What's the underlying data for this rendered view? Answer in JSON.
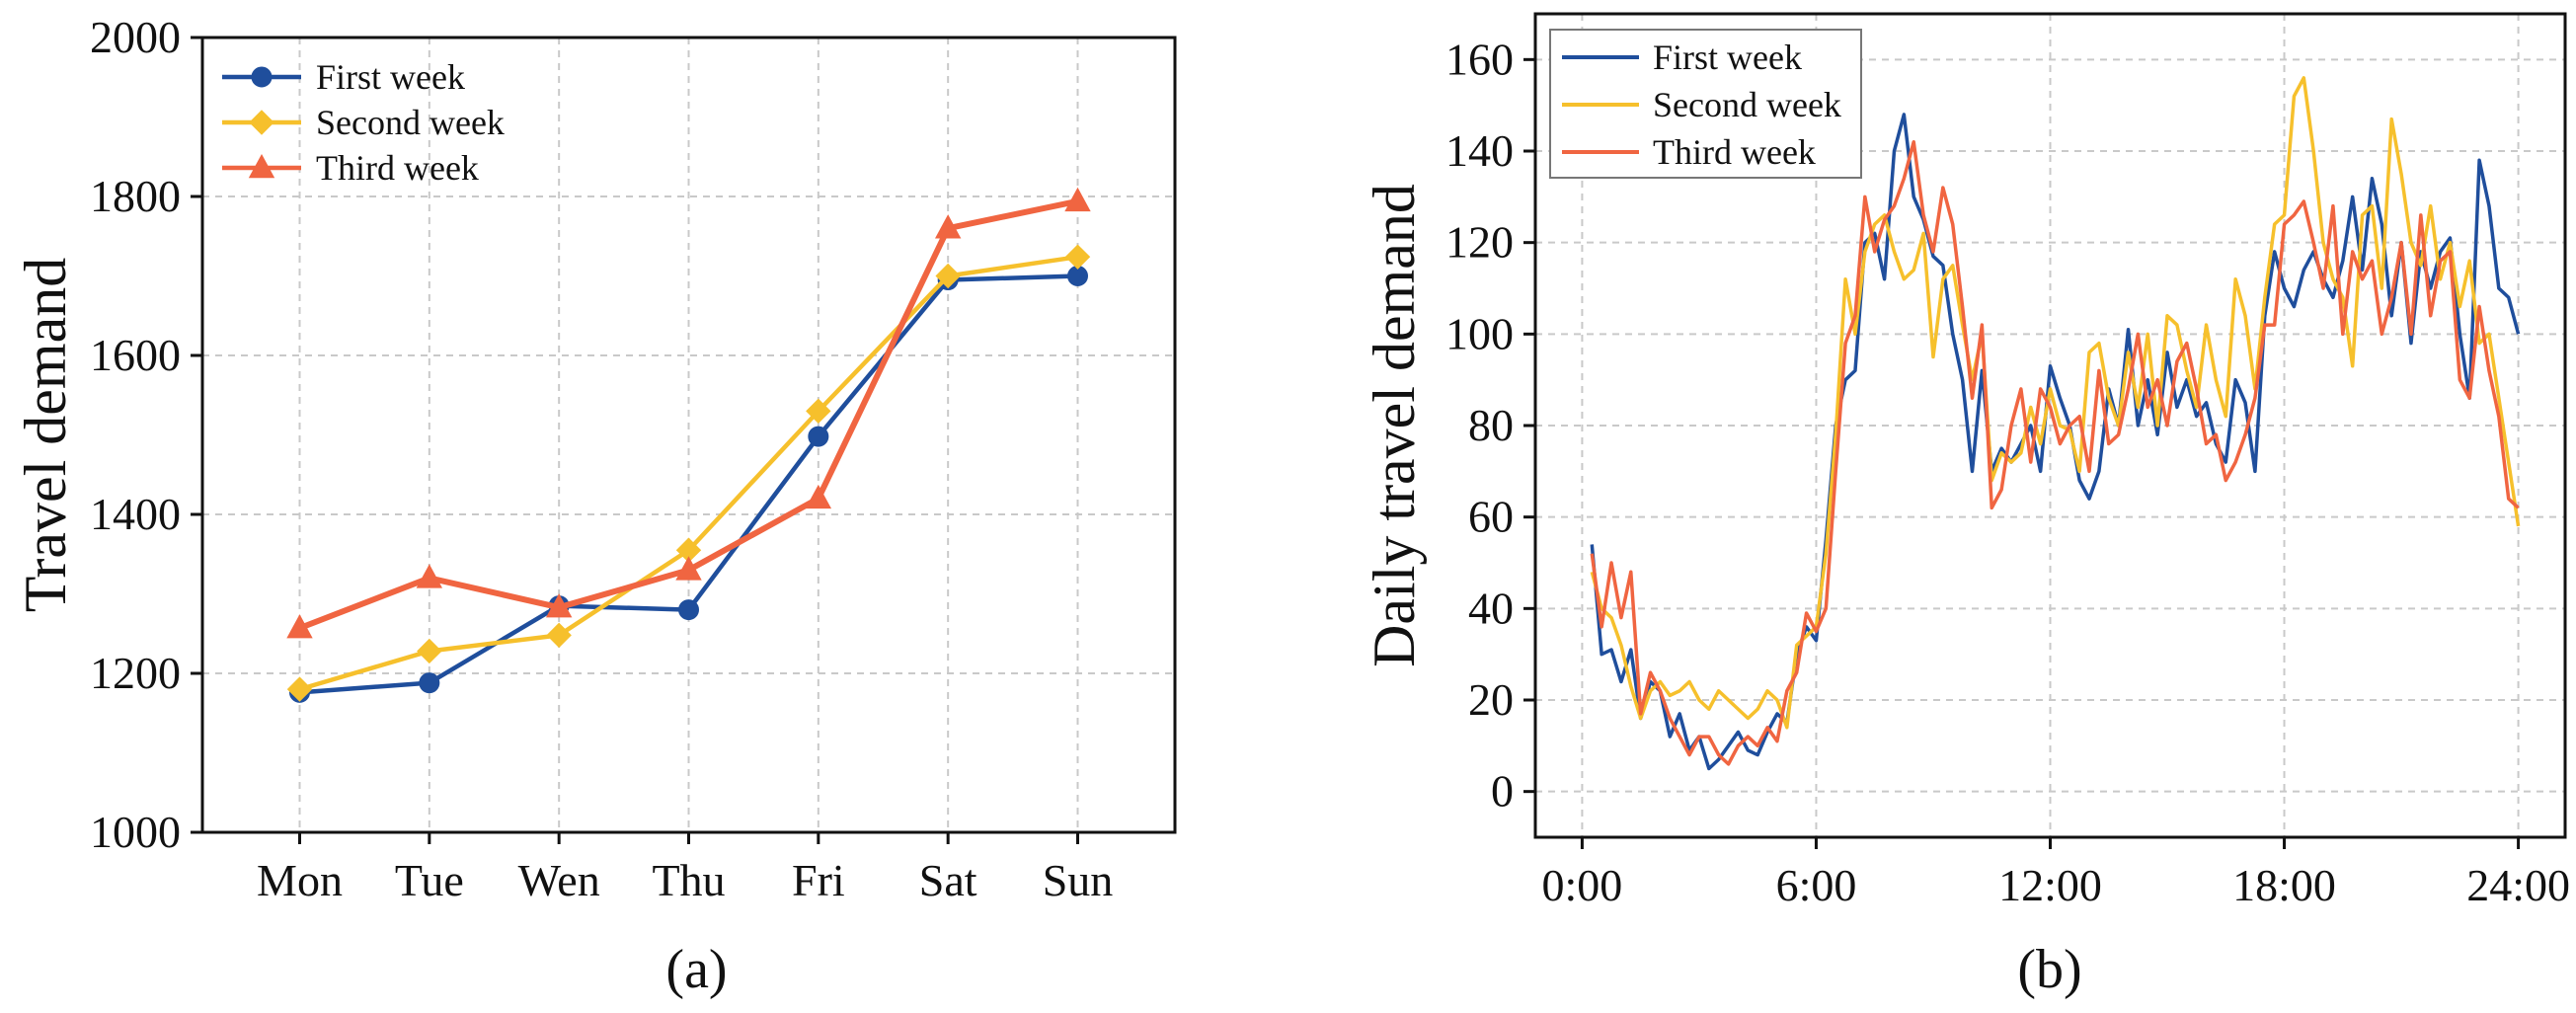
{
  "chart_data": [
    {
      "type": "line",
      "title": "",
      "caption": "(a)",
      "xlabel": "",
      "ylabel": "Travel demand",
      "categories": [
        "Mon",
        "Tue",
        "Wen",
        "Thu",
        "Fri",
        "Sat",
        "Sun"
      ],
      "ylim": [
        1000,
        2000
      ],
      "yticks": [
        1000,
        1200,
        1400,
        1600,
        1800,
        2000
      ],
      "grid": true,
      "legend_position": "top-left",
      "series": [
        {
          "name": "First week",
          "color": "#1f4e9c",
          "marker": "circle",
          "values": [
            1176,
            1188,
            1285,
            1280,
            1498,
            1695,
            1700
          ]
        },
        {
          "name": "Second week",
          "color": "#f6c02c",
          "marker": "diamond",
          "values": [
            1180,
            1228,
            1248,
            1355,
            1530,
            1700,
            1724
          ]
        },
        {
          "name": "Third week",
          "color": "#f06541",
          "marker": "triangle",
          "values": [
            1257,
            1320,
            1283,
            1330,
            1420,
            1760,
            1794
          ]
        }
      ]
    },
    {
      "type": "line",
      "title": "",
      "caption": "(b)",
      "xlabel": "",
      "ylabel": "Daily travel demand",
      "x": [
        0.25,
        0.5,
        0.75,
        1,
        1.25,
        1.5,
        1.75,
        2,
        2.25,
        2.5,
        2.75,
        3,
        3.25,
        3.5,
        3.75,
        4,
        4.25,
        4.5,
        4.75,
        5,
        5.25,
        5.5,
        5.75,
        6,
        6.25,
        6.5,
        6.75,
        7,
        7.25,
        7.5,
        7.75,
        8,
        8.25,
        8.5,
        8.75,
        9,
        9.25,
        9.5,
        9.75,
        10,
        10.25,
        10.5,
        10.75,
        11,
        11.25,
        11.5,
        11.75,
        12,
        12.25,
        12.5,
        12.75,
        13,
        13.25,
        13.5,
        13.75,
        14,
        14.25,
        14.5,
        14.75,
        15,
        15.25,
        15.5,
        15.75,
        16,
        16.25,
        16.5,
        16.75,
        17,
        17.25,
        17.5,
        17.75,
        18,
        18.25,
        18.5,
        18.75,
        19,
        19.25,
        19.5,
        19.75,
        20,
        20.25,
        20.5,
        20.75,
        21,
        21.25,
        21.5,
        21.75,
        22,
        22.25,
        22.5,
        22.75,
        23,
        23.25,
        23.5,
        23.75,
        24
      ],
      "xticks": [
        0,
        6,
        12,
        18,
        24
      ],
      "xtick_labels": [
        "0:00",
        "6:00",
        "12:00",
        "18:00",
        "24:00"
      ],
      "xlim": [
        -1.2,
        25.2
      ],
      "ylim": [
        -10,
        170
      ],
      "yticks": [
        0,
        20,
        40,
        60,
        80,
        100,
        120,
        140,
        160
      ],
      "grid": true,
      "legend_position": "top-left",
      "series": [
        {
          "name": "First week",
          "color": "#1f4e9c",
          "values": [
            54,
            30,
            31,
            24,
            31,
            16,
            24,
            22,
            12,
            17,
            9,
            12,
            5,
            7,
            10,
            13,
            9,
            8,
            13,
            17,
            15,
            30,
            36,
            33,
            55,
            80,
            90,
            92,
            120,
            122,
            112,
            140,
            148,
            130,
            125,
            117,
            115,
            100,
            90,
            70,
            92,
            70,
            75,
            72,
            76,
            80,
            70,
            93,
            86,
            80,
            68,
            64,
            70,
            88,
            80,
            101,
            80,
            90,
            78,
            96,
            84,
            90,
            82,
            85,
            76,
            72,
            90,
            85,
            70,
            104,
            118,
            110,
            106,
            114,
            118,
            112,
            108,
            116,
            130,
            114,
            134,
            124,
            104,
            120,
            98,
            118,
            110,
            118,
            121,
            100,
            86,
            138,
            128,
            110,
            108,
            100
          ]
        },
        {
          "name": "Second week",
          "color": "#f6c02c",
          "values": [
            48,
            40,
            38,
            32,
            23,
            16,
            22,
            24,
            21,
            22,
            24,
            20,
            18,
            22,
            20,
            18,
            16,
            18,
            22,
            20,
            14,
            32,
            34,
            36,
            52,
            78,
            112,
            100,
            118,
            124,
            126,
            118,
            112,
            114,
            122,
            95,
            112,
            115,
            102,
            90,
            100,
            68,
            74,
            72,
            74,
            84,
            76,
            88,
            80,
            79,
            70,
            96,
            98,
            86,
            80,
            96,
            84,
            100,
            80,
            104,
            102,
            92,
            84,
            102,
            90,
            82,
            112,
            104,
            88,
            108,
            124,
            126,
            152,
            156,
            140,
            120,
            112,
            108,
            93,
            126,
            128,
            110,
            147,
            135,
            120,
            115,
            128,
            112,
            120,
            106,
            116,
            98,
            100,
            86,
            72,
            58
          ]
        },
        {
          "name": "Third week",
          "color": "#f06541",
          "values": [
            52,
            36,
            50,
            38,
            48,
            17,
            26,
            22,
            16,
            12,
            8,
            12,
            12,
            8,
            6,
            10,
            12,
            10,
            14,
            11,
            22,
            26,
            39,
            35,
            40,
            70,
            98,
            104,
            130,
            118,
            125,
            128,
            134,
            142,
            126,
            118,
            132,
            124,
            106,
            86,
            102,
            62,
            66,
            80,
            88,
            72,
            88,
            84,
            76,
            80,
            82,
            70,
            92,
            76,
            78,
            88,
            100,
            84,
            90,
            80,
            94,
            98,
            88,
            76,
            78,
            68,
            72,
            78,
            86,
            102,
            102,
            124,
            126,
            129,
            120,
            110,
            128,
            100,
            118,
            112,
            116,
            100,
            108,
            120,
            100,
            126,
            104,
            116,
            118,
            90,
            86,
            106,
            92,
            82,
            64,
            62
          ]
        }
      ]
    }
  ]
}
